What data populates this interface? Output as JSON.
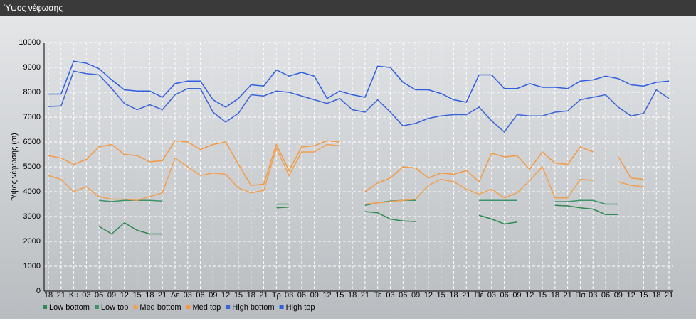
{
  "chart_data": {
    "type": "line",
    "title": "Ύψος νέφωσης",
    "ylabel": "Ύψος νέφωσης (m)",
    "categories": [
      "18",
      "21",
      "Κυ",
      "03",
      "06",
      "09",
      "12",
      "15",
      "18",
      "21",
      "Δε",
      "03",
      "06",
      "09",
      "12",
      "15",
      "18",
      "21",
      "Τρ",
      "03",
      "06",
      "09",
      "12",
      "15",
      "18",
      "21",
      "Τε",
      "03",
      "06",
      "09",
      "12",
      "15",
      "18",
      "21",
      "Πέ",
      "03",
      "06",
      "09",
      "12",
      "15",
      "18",
      "21",
      "Πα",
      "03",
      "06",
      "09",
      "12",
      "15",
      "18",
      "21"
    ],
    "ylim": [
      0,
      10000
    ],
    "yticks": [
      0,
      1000,
      2000,
      3000,
      4000,
      5000,
      6000,
      7000,
      8000,
      9000,
      10000
    ],
    "grid": true,
    "legend": "bottom",
    "series": [
      {
        "name": "Low bottom",
        "color": "#2e8a4e",
        "values": [
          null,
          null,
          null,
          null,
          2600,
          2300,
          2750,
          2450,
          2300,
          2300,
          null,
          null,
          null,
          null,
          null,
          null,
          null,
          null,
          3350,
          3380,
          null,
          null,
          null,
          null,
          null,
          3200,
          3150,
          2900,
          2820,
          2800,
          null,
          null,
          null,
          null,
          3050,
          2900,
          2700,
          2780,
          null,
          null,
          3450,
          3430,
          3350,
          3300,
          3080,
          3080,
          null,
          null,
          null,
          null
        ]
      },
      {
        "name": "Low top",
        "color": "#3c9468",
        "values": [
          null,
          null,
          null,
          null,
          3650,
          3600,
          3650,
          3650,
          3650,
          3620,
          null,
          null,
          null,
          null,
          null,
          null,
          null,
          null,
          3500,
          3500,
          null,
          null,
          null,
          null,
          null,
          3450,
          3550,
          3620,
          3650,
          3650,
          null,
          null,
          null,
          null,
          3650,
          3650,
          3650,
          3650,
          null,
          null,
          3600,
          3600,
          3650,
          3650,
          3500,
          3500,
          null,
          null,
          null,
          null
        ]
      },
      {
        "name": "Med bottom",
        "color": "#f0a050",
        "values": [
          4650,
          4500,
          4000,
          4200,
          3800,
          3700,
          3700,
          3650,
          3800,
          3950,
          5350,
          5000,
          4650,
          4750,
          4700,
          4150,
          3950,
          4050,
          5750,
          4650,
          5600,
          5600,
          5900,
          5850,
          null,
          3500,
          3550,
          3600,
          3650,
          3700,
          4250,
          4500,
          4400,
          4100,
          3900,
          4100,
          3750,
          3950,
          4450,
          5000,
          3750,
          3750,
          4500,
          4450,
          null,
          4400,
          4250,
          4200,
          null,
          null
        ]
      },
      {
        "name": "Med top",
        "color": "#f29a45",
        "values": [
          5450,
          5350,
          5100,
          5300,
          5800,
          5900,
          5500,
          5450,
          5200,
          5250,
          6050,
          6000,
          5700,
          5900,
          6000,
          5100,
          4250,
          4300,
          5900,
          4850,
          5800,
          5850,
          6050,
          6000,
          null,
          4000,
          4350,
          4550,
          5000,
          4950,
          4550,
          4750,
          4700,
          4850,
          4400,
          5550,
          5400,
          5450,
          4900,
          5600,
          5150,
          5100,
          5800,
          5600,
          null,
          5400,
          4550,
          4500,
          null,
          null
        ]
      },
      {
        "name": "High bottom",
        "color": "#3a64d8",
        "values": [
          7430,
          7450,
          8850,
          8750,
          8700,
          8150,
          7550,
          7300,
          7500,
          7300,
          7900,
          8150,
          8150,
          7200,
          6800,
          7150,
          7900,
          7850,
          8050,
          8000,
          7850,
          7700,
          7550,
          7750,
          7300,
          7200,
          7700,
          7200,
          6650,
          6750,
          6950,
          7050,
          7100,
          7100,
          7400,
          6850,
          6400,
          7100,
          7050,
          7050,
          7200,
          7250,
          7700,
          7800,
          7900,
          7400,
          7050,
          7150,
          8100,
          7750
        ]
      },
      {
        "name": "High top",
        "color": "#2f5ee0",
        "values": [
          7930,
          7930,
          9250,
          9170,
          8950,
          8500,
          8100,
          8050,
          8050,
          7800,
          8350,
          8450,
          8450,
          7700,
          7400,
          7750,
          8300,
          8250,
          8900,
          8650,
          8800,
          8650,
          7750,
          8050,
          7900,
          7800,
          9050,
          9000,
          8400,
          8100,
          8100,
          7950,
          7700,
          7600,
          8700,
          8700,
          8150,
          8150,
          8350,
          8200,
          8200,
          8150,
          8450,
          8500,
          8650,
          8550,
          8300,
          8250,
          8400,
          8450
        ]
      }
    ]
  }
}
